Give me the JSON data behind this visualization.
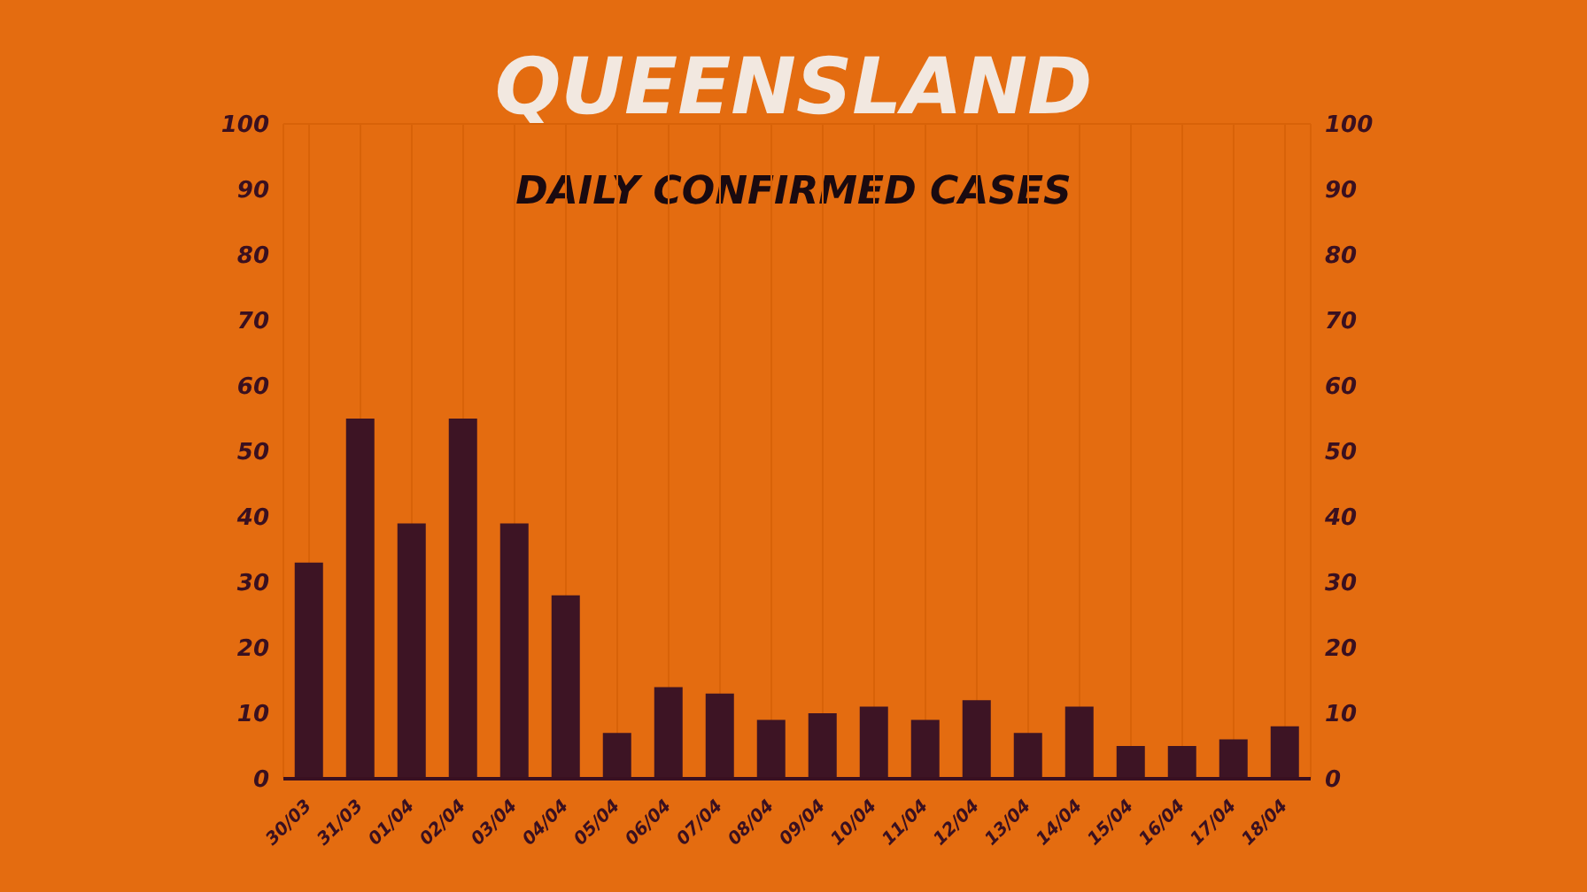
{
  "chart_data": {
    "type": "bar",
    "title": "QUEENSLAND",
    "subtitle": "DAILY CONFIRMED CASES",
    "categories": [
      "30/03",
      "31/03",
      "01/04",
      "02/04",
      "03/04",
      "04/04",
      "05/04",
      "06/04",
      "07/04",
      "08/04",
      "09/04",
      "10/04",
      "11/04",
      "12/04",
      "13/04",
      "14/04",
      "15/04",
      "16/04",
      "17/04",
      "18/04"
    ],
    "values": [
      33,
      55,
      39,
      55,
      39,
      28,
      7,
      14,
      13,
      9,
      10,
      11,
      9,
      12,
      7,
      11,
      5,
      5,
      6,
      8
    ],
    "color": "#3d1424",
    "ylim": [
      0,
      100
    ],
    "yticks": [
      0,
      10,
      20,
      30,
      40,
      50,
      60,
      70,
      80,
      90,
      100
    ],
    "y2lim": [
      0,
      100
    ],
    "y2ticks": [
      0,
      10,
      20,
      30,
      40,
      50,
      60,
      70,
      80,
      90,
      100
    ],
    "grid": true
  }
}
